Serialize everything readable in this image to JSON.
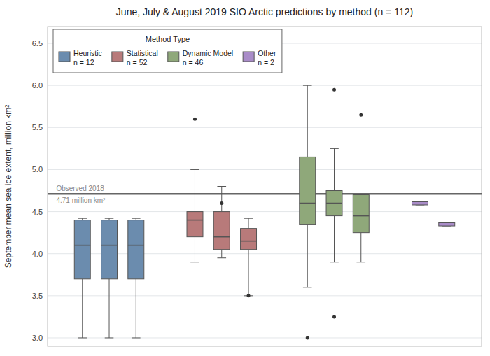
{
  "chart_data": {
    "type": "box",
    "title": "June, July & August 2019 SIO Arctic predictions by method (n = 112)",
    "y_label": "September mean sea ice extent, million km²",
    "ylim": [
      2.9,
      6.7
    ],
    "yticks": [
      {
        "value": 3.0,
        "label": "3.0"
      },
      3.5,
      {
        "value": 4.0,
        "label": "4.0"
      },
      4.5,
      {
        "value": 5.0,
        "label": "5.0"
      },
      5.5,
      {
        "value": 6.0,
        "label": "6.0"
      },
      6.5
    ],
    "grid": true,
    "tick_labels": "y",
    "legend": "upper left",
    "legend_title": "Method Type",
    "reference_line": {
      "value": 4.71,
      "labels": [
        "Observed 2018",
        "4.71 million km²"
      ]
    },
    "series": [
      {
        "name": "Heuristic\nn = 12",
        "color": "#6b8cae",
        "q1": [
          3.7,
          3.7,
          3.7
        ],
        "median": [
          4.1,
          4.1,
          4.1
        ],
        "q3": [
          4.4,
          4.4,
          4.4
        ],
        "whislo": [
          3.0,
          3.0,
          3.0
        ],
        "whishi": [
          4.42,
          4.42,
          4.42
        ],
        "fliers": [
          [],
          [],
          []
        ]
      },
      {
        "name": "Statistical\nn = 52",
        "color": "#b87a7a",
        "q1": [
          4.2,
          4.05,
          4.05
        ],
        "median": [
          4.4,
          4.2,
          4.15
        ],
        "q3": [
          4.5,
          4.5,
          4.3
        ],
        "whislo": [
          3.9,
          3.95,
          3.5
        ],
        "whishi": [
          5.0,
          4.8,
          4.42
        ],
        "fliers": [
          [
            5.6
          ],
          [
            4.6
          ],
          [
            3.5
          ]
        ]
      },
      {
        "name": "Dynamic Model\nn = 46",
        "color": "#8fa87a",
        "q1": [
          4.35,
          4.45,
          4.25
        ],
        "median": [
          4.6,
          4.6,
          4.45
        ],
        "q3": [
          5.15,
          4.75,
          4.7
        ],
        "whislo": [
          3.6,
          3.9,
          3.9
        ],
        "whishi": [
          6.0,
          5.25,
          4.7
        ],
        "fliers": [
          [
            3.0
          ],
          [
            5.95,
            3.25
          ],
          [
            5.65
          ]
        ]
      },
      {
        "name": "Other\nn = 2",
        "color": "#a98cc8",
        "q1": [
          4.58,
          4.33
        ],
        "median": [
          4.62,
          4.37
        ],
        "q3": [
          4.62,
          4.37
        ],
        "whislo": [
          4.58,
          4.33
        ],
        "whishi": [
          4.62,
          4.37
        ],
        "fliers": [
          [],
          []
        ]
      }
    ]
  }
}
